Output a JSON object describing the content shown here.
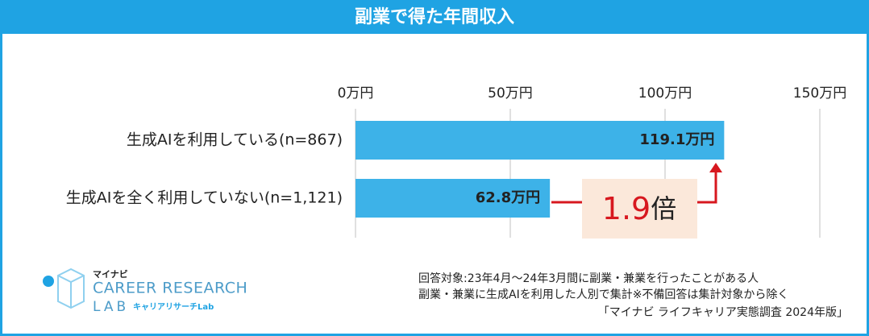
{
  "chart_data": {
    "type": "bar",
    "orientation": "horizontal",
    "title": "副業で得た年間収入",
    "categories": [
      "生成AIを利用している(n=867)",
      "生成AIを全く利用していない(n=1,121)"
    ],
    "values": [
      119.1,
      62.8
    ],
    "value_labels": [
      "119.1万円",
      "62.8万円"
    ],
    "color": "#3db2e8",
    "xlim": [
      0,
      150
    ],
    "xticks": [
      {
        "value": 0,
        "label": "0万円"
      },
      {
        "value": 50,
        "label": "50万円"
      },
      {
        "value": 100,
        "label": "100万円"
      },
      {
        "value": 150,
        "label": "150万円"
      }
    ],
    "grid": true,
    "annotation": {
      "ratio": "1.9",
      "unit": "倍"
    },
    "notes": [
      "回答対象:23年4月～24年3月間に副業・兼業を行ったことがある人",
      "副業・兼業に生成AIを利用した人別で集計※不備回答は集計対象から除く",
      "「マイナビ ライフキャリア実態調査 2024年版」"
    ],
    "logo": {
      "brand": "マイナビ",
      "line1": "CAREER RESEARCH",
      "line2": "LAB",
      "sub": "キャリアリサーチLab"
    }
  }
}
